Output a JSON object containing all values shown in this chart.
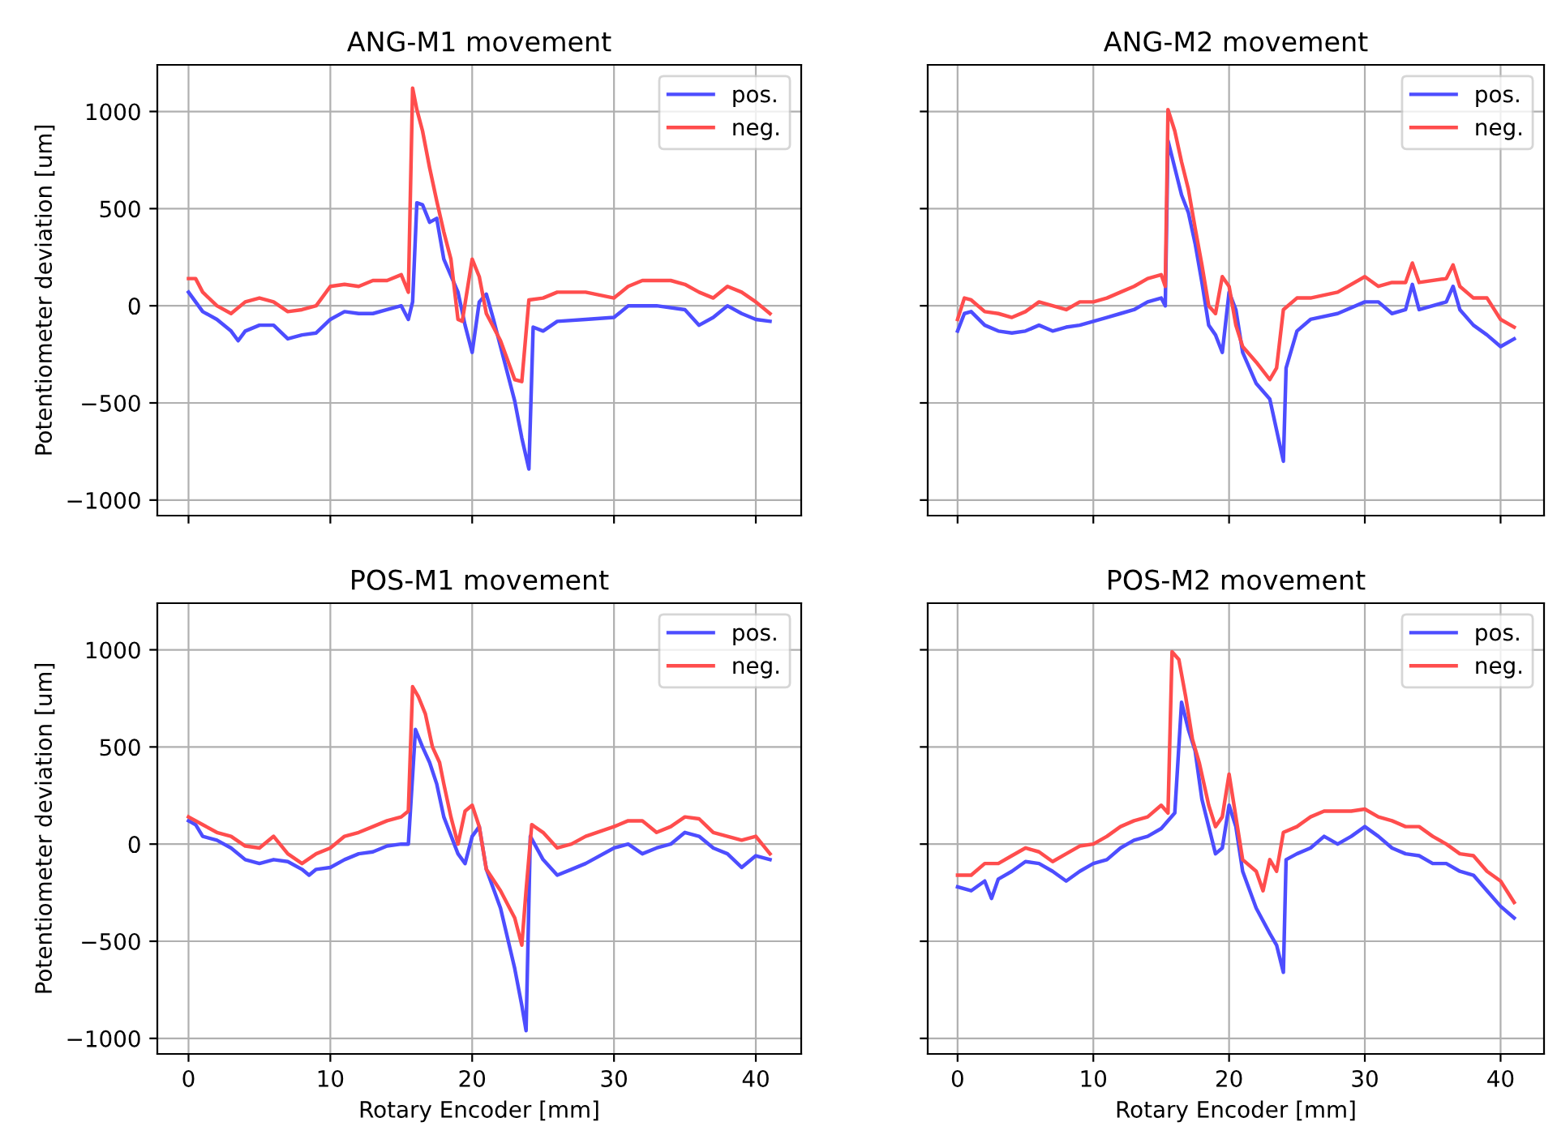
{
  "chart_data": [
    {
      "type": "line",
      "title": "ANG-M1 movement",
      "ylabel": "Potentiometer deviation [um]",
      "xlim": [
        -2.2,
        43.2
      ],
      "ylim": [
        -1080,
        1240
      ],
      "xticks": [
        {
          "value": 0,
          "label": null
        },
        {
          "value": 10,
          "label": null
        },
        {
          "value": 20,
          "label": null
        },
        {
          "value": 30,
          "label": null
        },
        {
          "value": 40,
          "label": null
        }
      ],
      "yticks": [
        {
          "value": -1000,
          "label": "−1000"
        },
        {
          "value": -500,
          "label": "−500"
        },
        0,
        500,
        1000
      ],
      "grid": true,
      "legend": "top right",
      "tick_labels": "y",
      "series": [
        {
          "name": "pos.",
          "color": "#4d4dff",
          "x": [
            0,
            1,
            2,
            3,
            3.5,
            4,
            5,
            6,
            7,
            8,
            9,
            10,
            11,
            12,
            13,
            14,
            15,
            15.5,
            15.8,
            16.1,
            16.5,
            17,
            17.5,
            18,
            19,
            19.5,
            20,
            20.5,
            21,
            21.5,
            22,
            23,
            23.5,
            24,
            24.3,
            25,
            26,
            28,
            30,
            31,
            33,
            35,
            36,
            37,
            38,
            39,
            40,
            41
          ],
          "values": [
            70,
            -30,
            -70,
            -130,
            -180,
            -130,
            -100,
            -100,
            -170,
            -150,
            -140,
            -70,
            -30,
            -40,
            -40,
            -20,
            0,
            -70,
            20,
            530,
            520,
            430,
            450,
            240,
            70,
            -100,
            -240,
            20,
            60,
            -70,
            -210,
            -490,
            -680,
            -840,
            -110,
            -130,
            -80,
            -70,
            -60,
            0,
            0,
            -20,
            -100,
            -60,
            0,
            -40,
            -70,
            -80
          ]
        },
        {
          "name": "neg.",
          "color": "#ff4d4d",
          "x": [
            0,
            0.5,
            1,
            2,
            3,
            4,
            5,
            6,
            7,
            8,
            9,
            10,
            11,
            12,
            13,
            14,
            15,
            15.5,
            15.8,
            16.1,
            16.5,
            17,
            17.5,
            18,
            18.5,
            19,
            19.3,
            20,
            20.5,
            21,
            22,
            23,
            23.5,
            24,
            25,
            26,
            28,
            30,
            31,
            32,
            34,
            35,
            36,
            37,
            38,
            39,
            40,
            41
          ],
          "values": [
            140,
            140,
            70,
            0,
            -40,
            20,
            40,
            20,
            -30,
            -20,
            0,
            100,
            110,
            100,
            130,
            130,
            160,
            70,
            1120,
            1010,
            900,
            710,
            540,
            380,
            240,
            -70,
            -80,
            240,
            150,
            -40,
            -180,
            -380,
            -390,
            30,
            40,
            70,
            70,
            40,
            100,
            130,
            130,
            110,
            70,
            40,
            100,
            70,
            20,
            -40
          ]
        }
      ]
    },
    {
      "type": "line",
      "title": "ANG-M2 movement",
      "xlim": [
        -2.2,
        43.2
      ],
      "ylim": [
        -1080,
        1240
      ],
      "xticks": [
        {
          "value": 0,
          "label": null
        },
        {
          "value": 10,
          "label": null
        },
        {
          "value": 20,
          "label": null
        },
        {
          "value": 30,
          "label": null
        },
        {
          "value": 40,
          "label": null
        }
      ],
      "yticks": [
        {
          "value": -1000,
          "label": null
        },
        {
          "value": -500,
          "label": null
        },
        {
          "value": 0,
          "label": null
        },
        {
          "value": 500,
          "label": null
        },
        {
          "value": 1000,
          "label": null
        }
      ],
      "grid": true,
      "legend": "top right",
      "tick_labels": false,
      "series": [
        {
          "name": "pos.",
          "color": "#4d4dff",
          "x": [
            0,
            0.5,
            1,
            2,
            3,
            4,
            5,
            6,
            7,
            8,
            9,
            10,
            11,
            12,
            13,
            14,
            15,
            15.3,
            15.5,
            16,
            16.5,
            17,
            17.5,
            18,
            18.5,
            19,
            19.5,
            20,
            20.5,
            21,
            22,
            23,
            24,
            24.2,
            25,
            26,
            28,
            30,
            31,
            32,
            33,
            33.5,
            34,
            36,
            36.5,
            37,
            38,
            39,
            40,
            41
          ],
          "values": [
            -130,
            -40,
            -30,
            -100,
            -130,
            -140,
            -130,
            -100,
            -130,
            -110,
            -100,
            -80,
            -60,
            -40,
            -20,
            20,
            40,
            0,
            850,
            710,
            570,
            480,
            320,
            120,
            -100,
            -150,
            -240,
            70,
            -20,
            -240,
            -400,
            -480,
            -800,
            -320,
            -130,
            -70,
            -40,
            20,
            20,
            -40,
            -20,
            110,
            -20,
            20,
            100,
            -20,
            -100,
            -150,
            -210,
            -170
          ]
        },
        {
          "name": "neg.",
          "color": "#ff4d4d",
          "x": [
            0,
            0.5,
            1,
            2,
            3,
            4,
            5,
            6,
            7,
            8,
            9,
            10,
            11,
            12,
            13,
            14,
            15,
            15.3,
            15.5,
            16,
            16.5,
            17,
            17.5,
            18,
            18.5,
            19,
            19.5,
            20,
            20.5,
            21,
            22,
            23,
            23.5,
            24,
            25,
            26,
            28,
            30,
            31,
            32,
            33,
            33.5,
            34,
            36,
            36.5,
            37,
            38,
            39,
            40,
            41
          ],
          "values": [
            -70,
            40,
            30,
            -30,
            -40,
            -60,
            -30,
            20,
            0,
            -20,
            20,
            20,
            40,
            70,
            100,
            140,
            160,
            100,
            1010,
            900,
            740,
            600,
            400,
            210,
            0,
            -40,
            150,
            100,
            -100,
            -210,
            -290,
            -380,
            -320,
            -20,
            40,
            40,
            70,
            150,
            100,
            120,
            120,
            220,
            120,
            140,
            210,
            100,
            40,
            40,
            -70,
            -110
          ]
        }
      ]
    },
    {
      "type": "line",
      "title": "POS-M1 movement",
      "xlabel": "Rotary Encoder [mm]",
      "ylabel": "Potentiometer deviation [um]",
      "xlim": [
        -2.2,
        43.2
      ],
      "ylim": [
        -1080,
        1240
      ],
      "xticks": [
        0,
        10,
        20,
        30,
        40
      ],
      "yticks": [
        {
          "value": -1000,
          "label": "−1000"
        },
        {
          "value": -500,
          "label": "−500"
        },
        0,
        500,
        1000
      ],
      "grid": true,
      "legend": "top right",
      "series": [
        {
          "name": "pos.",
          "color": "#4d4dff",
          "x": [
            0,
            0.5,
            1,
            2,
            3,
            4,
            5,
            6,
            7,
            8,
            8.5,
            9,
            10,
            11,
            12,
            13,
            14,
            15,
            15.5,
            16,
            16.5,
            17,
            17.5,
            18,
            19,
            19.5,
            20,
            20.5,
            21,
            22,
            23,
            23.5,
            23.8,
            24.1,
            25,
            26,
            27,
            28,
            30,
            31,
            32,
            33,
            34,
            35,
            36,
            37,
            38,
            39,
            40,
            41
          ],
          "values": [
            120,
            100,
            40,
            20,
            -20,
            -80,
            -100,
            -80,
            -90,
            -130,
            -160,
            -130,
            -120,
            -80,
            -50,
            -40,
            -10,
            0,
            0,
            590,
            500,
            420,
            310,
            140,
            -50,
            -100,
            40,
            90,
            -130,
            -330,
            -640,
            -830,
            -960,
            40,
            -80,
            -160,
            -130,
            -100,
            -20,
            0,
            -50,
            -20,
            0,
            60,
            40,
            -20,
            -50,
            -120,
            -60,
            -80
          ]
        },
        {
          "name": "neg.",
          "color": "#ff4d4d",
          "x": [
            0,
            1,
            2,
            3,
            4,
            5,
            6,
            7,
            8,
            9,
            10,
            11,
            12,
            13,
            14,
            15,
            15.5,
            15.8,
            16.2,
            16.7,
            17.2,
            17.7,
            18,
            18.5,
            19,
            19.5,
            20,
            20.5,
            21,
            22,
            23,
            23.5,
            23.8,
            24.2,
            25,
            26,
            27,
            28,
            30,
            31,
            32,
            33,
            34,
            35,
            36,
            37,
            38,
            39,
            40,
            41
          ],
          "values": [
            140,
            100,
            60,
            40,
            -10,
            -20,
            40,
            -50,
            -100,
            -50,
            -20,
            40,
            60,
            90,
            120,
            140,
            170,
            810,
            760,
            670,
            500,
            420,
            310,
            140,
            0,
            170,
            200,
            90,
            -130,
            -240,
            -380,
            -520,
            -240,
            100,
            60,
            -20,
            0,
            40,
            90,
            120,
            120,
            60,
            90,
            140,
            130,
            60,
            40,
            20,
            40,
            -50
          ]
        }
      ]
    },
    {
      "type": "line",
      "title": "POS-M2 movement",
      "xlabel": "Rotary Encoder [mm]",
      "xlim": [
        -2.2,
        43.2
      ],
      "ylim": [
        -1080,
        1240
      ],
      "xticks": [
        0,
        10,
        20,
        30,
        40
      ],
      "yticks": [
        {
          "value": -1000,
          "label": null
        },
        {
          "value": -500,
          "label": null
        },
        {
          "value": 0,
          "label": null
        },
        {
          "value": 500,
          "label": null
        },
        {
          "value": 1000,
          "label": null
        }
      ],
      "grid": true,
      "legend": "top right",
      "tick_labels": "x",
      "series": [
        {
          "name": "pos.",
          "color": "#4d4dff",
          "x": [
            0,
            1,
            2,
            2.5,
            3,
            4,
            5,
            6,
            7,
            8,
            9,
            10,
            11,
            12,
            13,
            14,
            15,
            16,
            16.5,
            17,
            17.5,
            18,
            19,
            19.5,
            20,
            20.5,
            21,
            22,
            23,
            23.5,
            24,
            24.2,
            25,
            26,
            27,
            28,
            29,
            30,
            31,
            32,
            33,
            34,
            35,
            36,
            37,
            38,
            39,
            40,
            41
          ],
          "values": [
            -220,
            -240,
            -190,
            -280,
            -180,
            -140,
            -90,
            -100,
            -140,
            -190,
            -140,
            -100,
            -80,
            -20,
            20,
            40,
            80,
            160,
            730,
            590,
            480,
            230,
            -50,
            -20,
            200,
            90,
            -140,
            -330,
            -460,
            -520,
            -660,
            -80,
            -50,
            -20,
            40,
            0,
            40,
            90,
            40,
            -20,
            -50,
            -60,
            -100,
            -100,
            -140,
            -160,
            -240,
            -320,
            -380
          ]
        },
        {
          "name": "neg.",
          "color": "#ff4d4d",
          "x": [
            0,
            1,
            2,
            3,
            4,
            5,
            6,
            7,
            8,
            9,
            10,
            11,
            12,
            13,
            14,
            15,
            15.5,
            15.8,
            16.3,
            16.8,
            17.3,
            17.8,
            18.5,
            19,
            19.5,
            20,
            20.5,
            21,
            22,
            22.5,
            23,
            23.5,
            24,
            25,
            26,
            27,
            28,
            29,
            30,
            31,
            32,
            33,
            34,
            35,
            36,
            37,
            38,
            39,
            40,
            41
          ],
          "values": [
            -160,
            -160,
            -100,
            -100,
            -60,
            -20,
            -40,
            -90,
            -50,
            -10,
            0,
            40,
            90,
            120,
            140,
            200,
            160,
            990,
            950,
            760,
            540,
            420,
            200,
            90,
            140,
            360,
            140,
            -80,
            -140,
            -240,
            -80,
            -140,
            60,
            90,
            140,
            170,
            170,
            170,
            180,
            140,
            120,
            90,
            90,
            40,
            0,
            -50,
            -60,
            -140,
            -190,
            -300
          ]
        }
      ]
    }
  ]
}
